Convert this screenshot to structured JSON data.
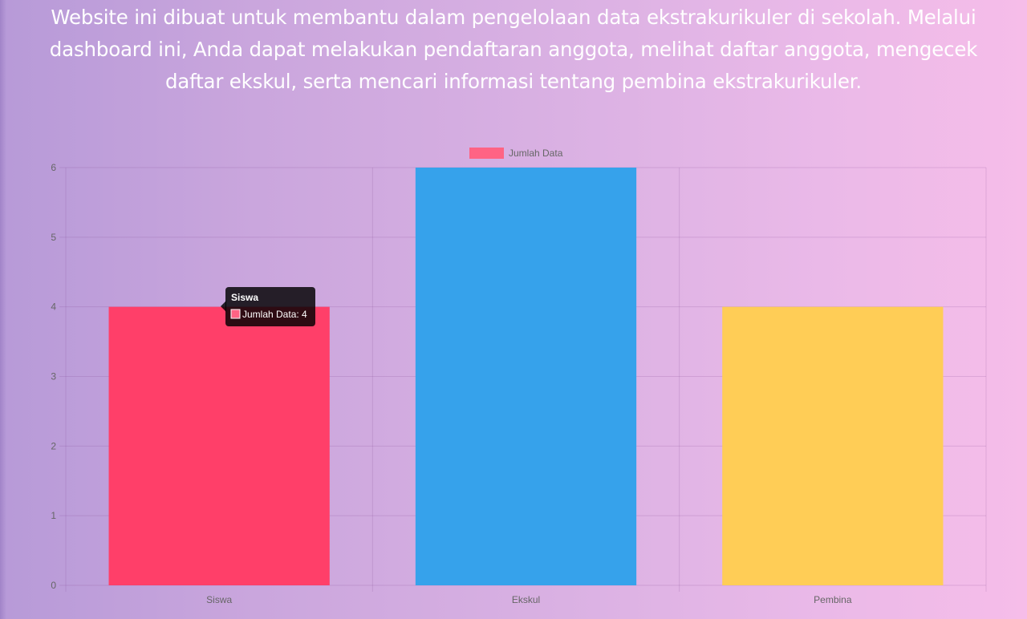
{
  "intro": {
    "text": "Website ini dibuat untuk membantu dalam pengelolaan data ekstrakurikuler di sekolah. Melalui dashboard ini, Anda dapat melakukan pendaftaran anggota, melihat daftar anggota, mengecek daftar ekskul, serta mencari informasi tentang pembina ekstrakurikuler."
  },
  "chart_data": {
    "type": "bar",
    "title": "",
    "xlabel": "",
    "ylabel": "",
    "categories": [
      "Siswa",
      "Ekskul",
      "Pembina"
    ],
    "series": [
      {
        "name": "Jumlah Data",
        "values": [
          4,
          6,
          4
        ],
        "colors": [
          "#ff3f69",
          "#36a2eb",
          "#ffcd56"
        ]
      }
    ],
    "ylim": [
      0,
      6
    ],
    "yticks": [
      "0",
      "1",
      "2",
      "3",
      "4",
      "5",
      "6"
    ],
    "grid": true,
    "legend": "top-center",
    "legend_color": "#ff6384",
    "tooltip": {
      "title": "Siswa",
      "label": "Jumlah Data: 4",
      "swatch_color": "#ff6384"
    }
  }
}
